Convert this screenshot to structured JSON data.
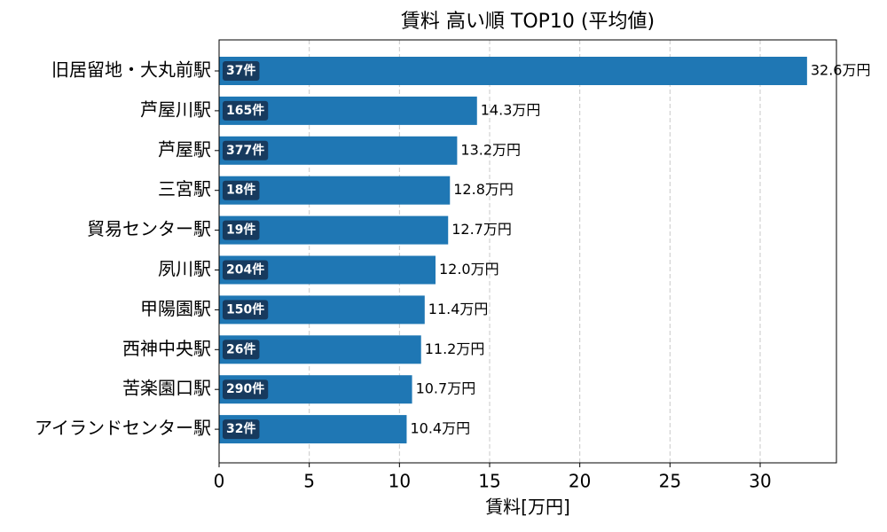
{
  "chart_data": {
    "type": "barh",
    "title": "賃料 高い順 TOP10 (平均値)",
    "x_label": "賃料[万円]",
    "categories": [
      "旧居留地・大丸前駅",
      "芦屋川駅",
      "芦屋駅",
      "三宮駅",
      "貿易センター駅",
      "夙川駅",
      "甲陽園駅",
      "西神中央駅",
      "苦楽園口駅",
      "アイランドセンター駅"
    ],
    "values": [
      32.6,
      14.3,
      13.2,
      12.8,
      12.7,
      12.0,
      11.4,
      11.2,
      10.7,
      10.4
    ],
    "value_labels": [
      "32.6万円",
      "14.3万円",
      "13.2万円",
      "12.8万円",
      "12.7万円",
      "12.0万円",
      "11.4万円",
      "11.2万円",
      "10.7万円",
      "10.4万円"
    ],
    "count_labels": [
      "37件",
      "165件",
      "377件",
      "18件",
      "19件",
      "204件",
      "150件",
      "26件",
      "290件",
      "32件"
    ],
    "color": "#1f77b4",
    "count_label_color": "#173a5e",
    "xlim": [
      0,
      34.23
    ],
    "xticks": [
      0,
      5,
      10,
      15,
      20,
      25,
      30
    ],
    "grid": true
  }
}
